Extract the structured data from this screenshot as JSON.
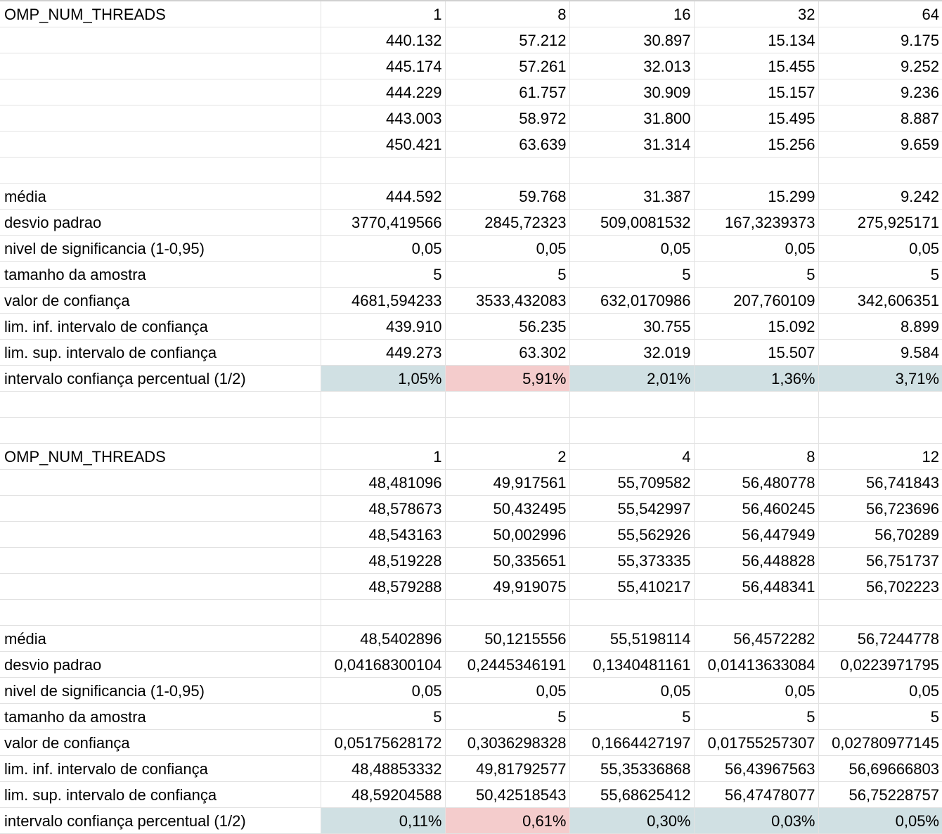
{
  "sections": [
    {
      "header_label": "OMP_NUM_THREADS",
      "threads": [
        "1",
        "8",
        "16",
        "32",
        "64"
      ],
      "runs": [
        [
          "440.132",
          "57.212",
          "30.897",
          "15.134",
          "9.175"
        ],
        [
          "445.174",
          "57.261",
          "32.013",
          "15.455",
          "9.252"
        ],
        [
          "444.229",
          "61.757",
          "30.909",
          "15.157",
          "9.236"
        ],
        [
          "443.003",
          "58.972",
          "31.800",
          "15.495",
          "8.887"
        ],
        [
          "450.421",
          "63.639",
          "31.314",
          "15.256",
          "9.659"
        ]
      ],
      "stats": [
        {
          "label": "média",
          "values": [
            "444.592",
            "59.768",
            "31.387",
            "15.299",
            "9.242"
          ]
        },
        {
          "label": "desvio padrao",
          "values": [
            "3770,419566",
            "2845,72323",
            "509,0081532",
            "167,3239373",
            "275,925171"
          ]
        },
        {
          "label": "nivel de significancia (1-0,95)",
          "values": [
            "0,05",
            "0,05",
            "0,05",
            "0,05",
            "0,05"
          ]
        },
        {
          "label": "tamanho da amostra",
          "values": [
            "5",
            "5",
            "5",
            "5",
            "5"
          ]
        },
        {
          "label": "valor de confiança",
          "values": [
            "4681,594233",
            "3533,432083",
            "632,0170986",
            "207,760109",
            "342,606351"
          ]
        },
        {
          "label": "lim. inf. intervalo de confiança",
          "values": [
            "439.910",
            "56.235",
            "30.755",
            "15.092",
            "8.899"
          ]
        },
        {
          "label": "lim. sup. intervalo de confiança",
          "values": [
            "449.273",
            "63.302",
            "32.019",
            "15.507",
            "9.584"
          ]
        },
        {
          "label": "intervalo confiança percentual (1/2)",
          "values": [
            "1,05%",
            "5,91%",
            "2,01%",
            "1,36%",
            "3,71%"
          ]
        }
      ]
    },
    {
      "header_label": "OMP_NUM_THREADS",
      "threads": [
        "1",
        "2",
        "4",
        "8",
        "12"
      ],
      "runs": [
        [
          "48,481096",
          "49,917561",
          "55,709582",
          "56,480778",
          "56,741843"
        ],
        [
          "48,578673",
          "50,432495",
          "55,542997",
          "56,460245",
          "56,723696"
        ],
        [
          "48,543163",
          "50,002996",
          "55,562926",
          "56,447949",
          "56,70289"
        ],
        [
          "48,519228",
          "50,335651",
          "55,373335",
          "56,448828",
          "56,751737"
        ],
        [
          "48,579288",
          "49,919075",
          "55,410217",
          "56,448341",
          "56,702223"
        ]
      ],
      "stats": [
        {
          "label": "média",
          "values": [
            "48,5402896",
            "50,1215556",
            "55,5198114",
            "56,4572282",
            "56,7244778"
          ]
        },
        {
          "label": "desvio padrao",
          "values": [
            "0,04168300104",
            "0,2445346191",
            "0,1340481161",
            "0,01413633084",
            "0,0223971795"
          ]
        },
        {
          "label": "nivel de significancia (1-0,95)",
          "values": [
            "0,05",
            "0,05",
            "0,05",
            "0,05",
            "0,05"
          ]
        },
        {
          "label": "tamanho da amostra",
          "values": [
            "5",
            "5",
            "5",
            "5",
            "5"
          ]
        },
        {
          "label": "valor de confiança",
          "values": [
            "0,05175628172",
            "0,3036298328",
            "0,1664427197",
            "0,01755257307",
            "0,02780977145"
          ]
        },
        {
          "label": "lim. inf. intervalo de confiança",
          "values": [
            "48,48853332",
            "49,81792577",
            "55,35336868",
            "56,43967563",
            "56,69666803"
          ]
        },
        {
          "label": "lim. sup. intervalo de confiança",
          "values": [
            "48,59204588",
            "50,42518543",
            "55,68625412",
            "56,47478077",
            "56,75228757"
          ]
        },
        {
          "label": "intervalo confiança percentual (1/2)",
          "values": [
            "0,11%",
            "0,61%",
            "0,30%",
            "0,03%",
            "0,05%"
          ]
        }
      ]
    }
  ],
  "highlight_colors": {
    "normal": "#d0e0e3",
    "max": "#f4cccc"
  }
}
